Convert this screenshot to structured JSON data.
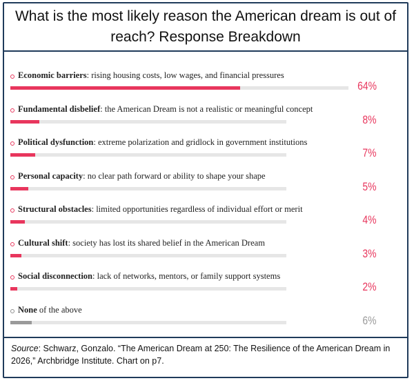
{
  "header": {
    "title": "What is the most likely reason the American dream is out of reach?  Response Breakdown"
  },
  "chart_data": {
    "type": "bar",
    "orientation": "horizontal",
    "xlim": [
      0,
      100
    ],
    "categories": [
      "Economic barriers",
      "Fundamental disbelief",
      "Political dysfunction",
      "Personal capacity",
      "Structural obstacles",
      "Cultural shift",
      "Social disconnection",
      "None"
    ],
    "descriptions": [
      ": rising housing costs, low wages, and financial pressures",
      ": the American Dream is not a realistic or meaningful concept",
      ": extreme polarization and gridlock in government institutions",
      ": no clear path forward or ability to shape your shape",
      ": limited opportunities regardless of individual effort or merit",
      ": society has lost its shared belief in the American Dream",
      ": lack of networks, mentors, or family support systems",
      " of the above"
    ],
    "values": [
      64,
      8,
      7,
      5,
      4,
      3,
      2,
      6
    ],
    "value_labels": [
      "64%",
      "8%",
      "7%",
      "5%",
      "4%",
      "3%",
      "2%",
      "6%"
    ],
    "colors": [
      "#e8365d",
      "#e8365d",
      "#e8365d",
      "#e8365d",
      "#e8365d",
      "#e8365d",
      "#e8365d",
      "#9a9a9a"
    ]
  },
  "source": {
    "label": "Source",
    "text": ": Schwarz, Gonzalo. “The American Dream at 250: The Resilience of the American Dream in 2026,” Archbridge Institute. Chart on p7."
  }
}
